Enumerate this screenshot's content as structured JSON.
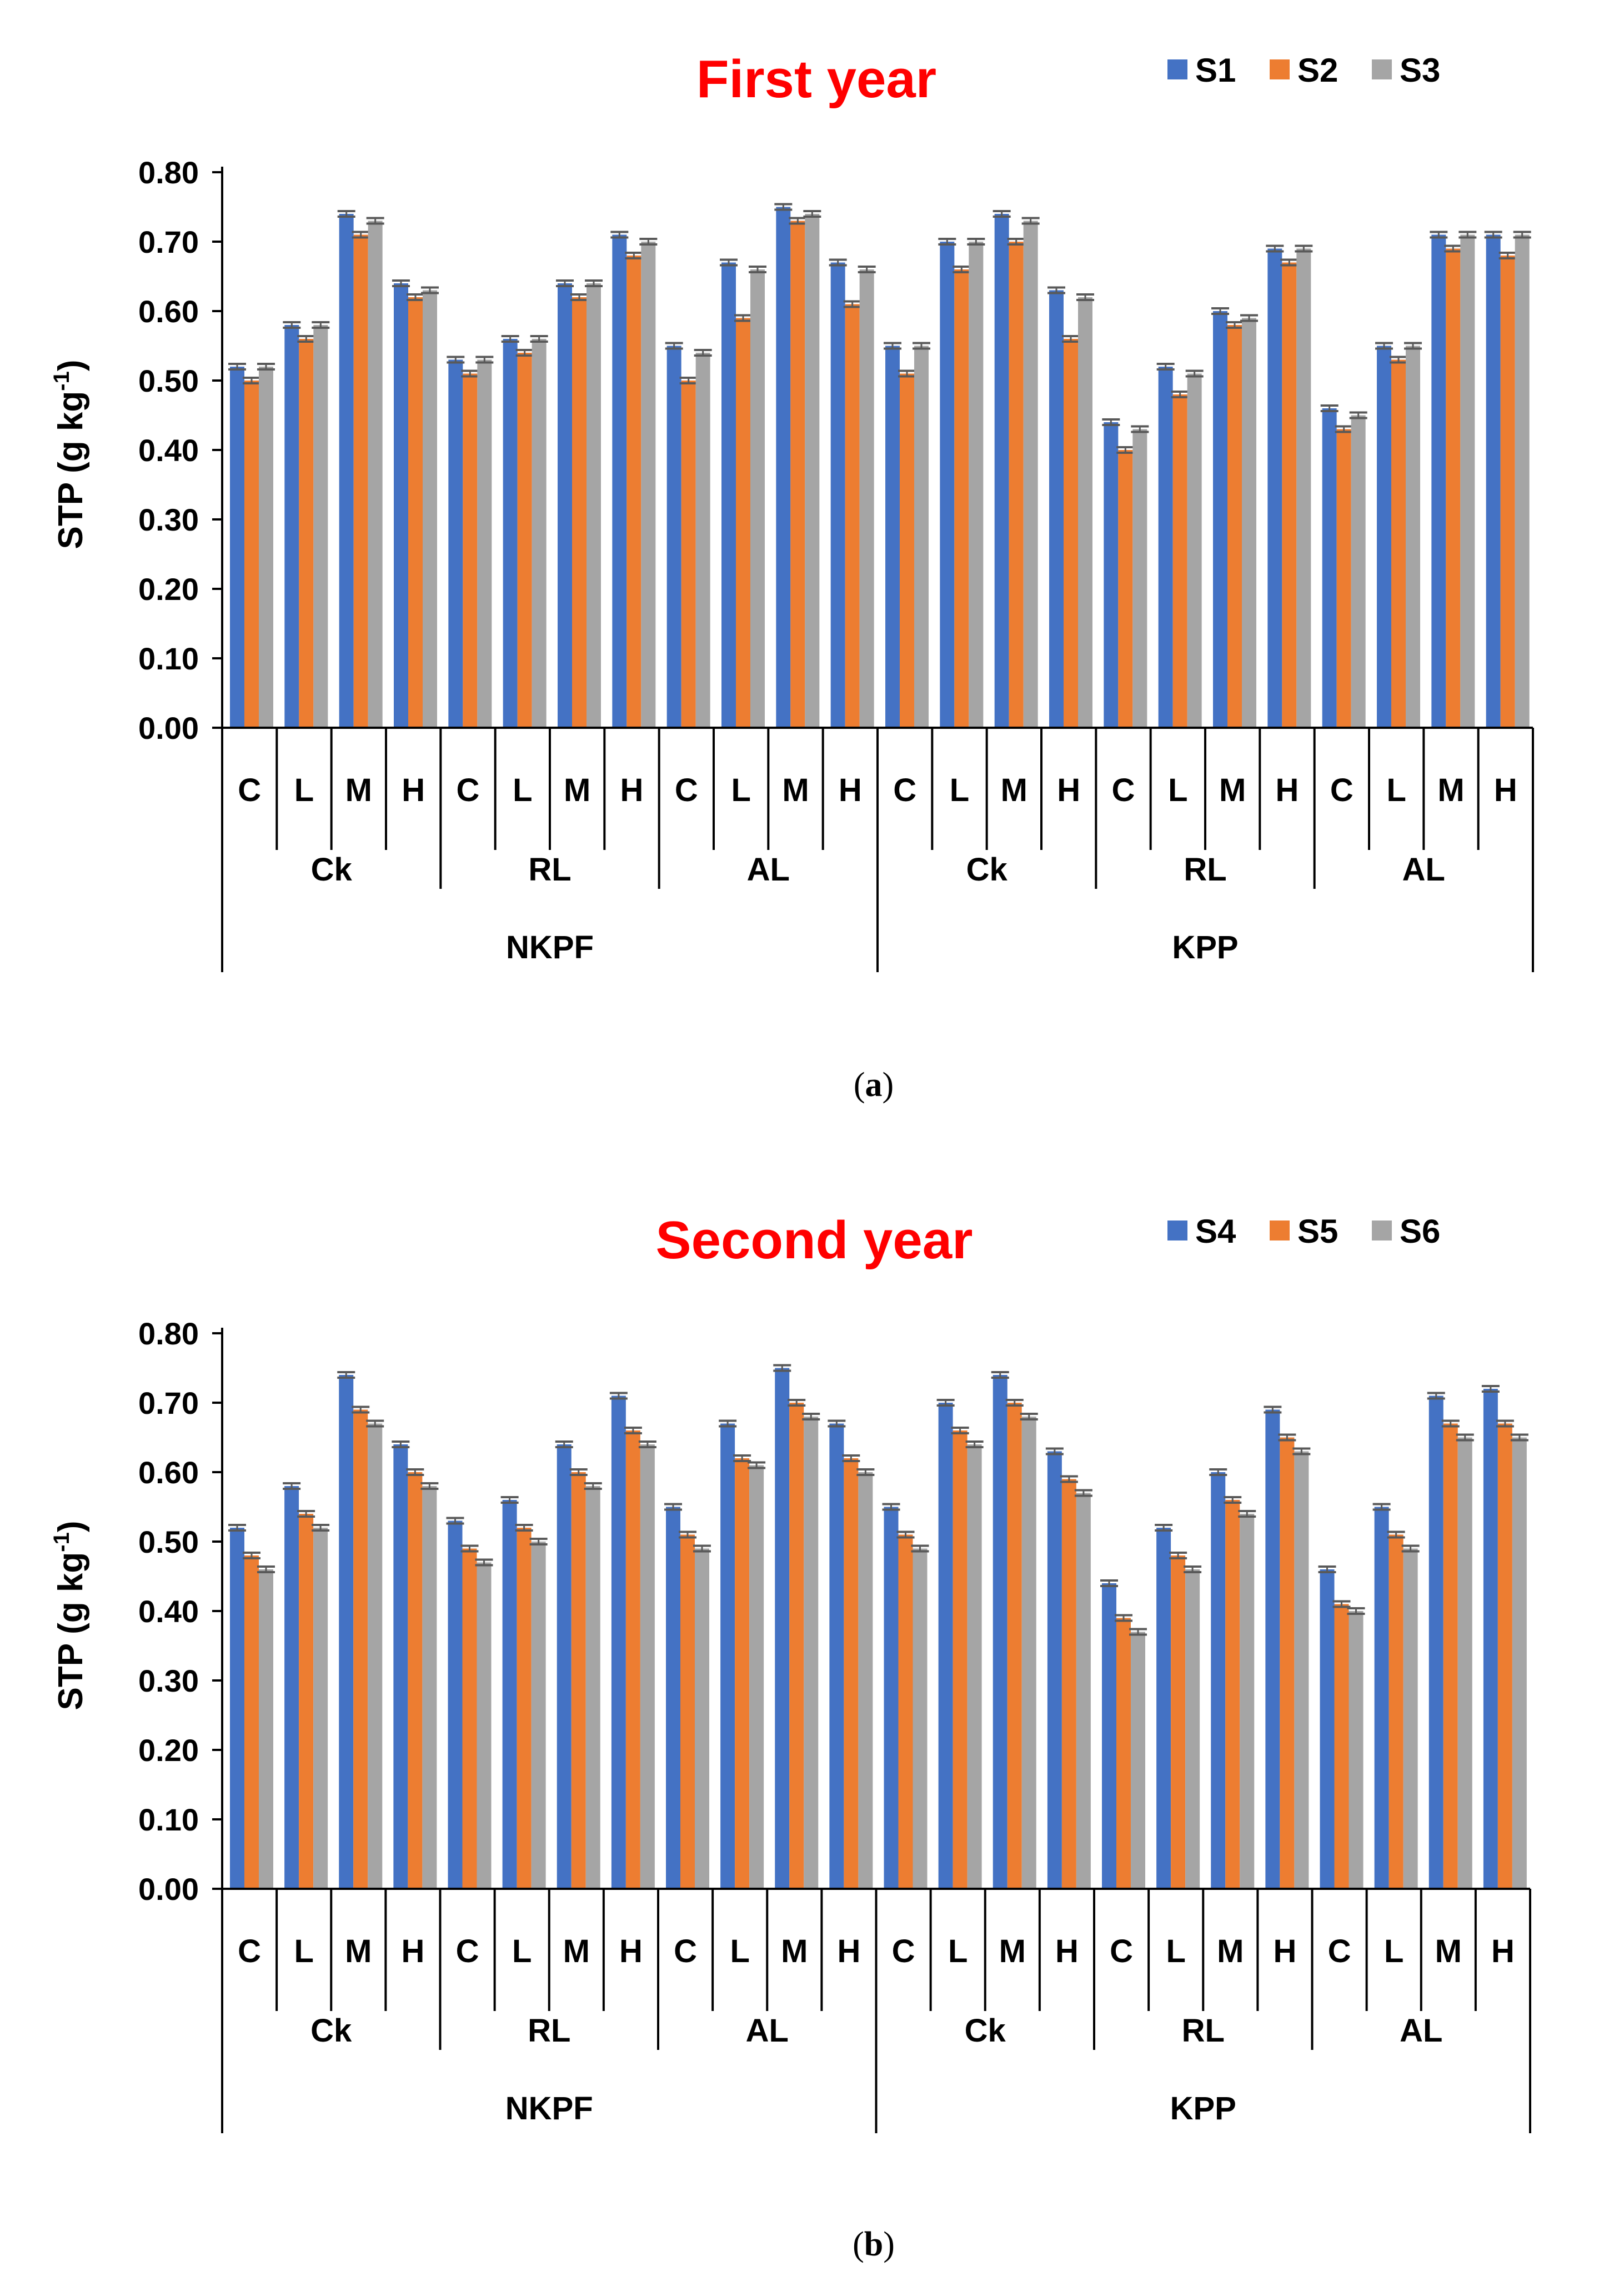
{
  "colors": {
    "series1": "#4472C4",
    "series2": "#ED7D31",
    "series3": "#A5A5A5",
    "title": "#FF0000",
    "errorbar": "#595959"
  },
  "chart_data": [
    {
      "type": "bar",
      "title": "First year",
      "caption": "(a)",
      "ylabel": "STP (g kg",
      "ylabel_sup": "-1",
      "ylabel_close": ")",
      "ylim": [
        0,
        0.8
      ],
      "yticks": [
        "0.00",
        "0.10",
        "0.20",
        "0.30",
        "0.40",
        "0.50",
        "0.60",
        "0.70",
        "0.80"
      ],
      "grid": false,
      "legend_position": "top-right",
      "categories_level1": [
        "C",
        "L",
        "M",
        "H",
        "C",
        "L",
        "M",
        "H",
        "C",
        "L",
        "M",
        "H",
        "C",
        "L",
        "M",
        "H",
        "C",
        "L",
        "M",
        "H",
        "C",
        "L",
        "M",
        "H"
      ],
      "categories_level2": [
        "Ck",
        "RL",
        "AL",
        "Ck",
        "RL",
        "AL"
      ],
      "categories_level3": [
        "NKPF",
        "KPP"
      ],
      "series": [
        {
          "name": "S1",
          "values": [
            0.52,
            0.58,
            0.74,
            0.64,
            0.53,
            0.56,
            0.64,
            0.71,
            0.55,
            0.67,
            0.75,
            0.67,
            0.55,
            0.7,
            0.74,
            0.63,
            0.44,
            0.52,
            0.6,
            0.69,
            0.46,
            0.55,
            0.71,
            0.71
          ]
        },
        {
          "name": "S2",
          "values": [
            0.5,
            0.56,
            0.71,
            0.62,
            0.51,
            0.54,
            0.62,
            0.68,
            0.5,
            0.59,
            0.73,
            0.61,
            0.51,
            0.66,
            0.7,
            0.56,
            0.4,
            0.48,
            0.58,
            0.67,
            0.43,
            0.53,
            0.69,
            0.68
          ]
        },
        {
          "name": "S3",
          "values": [
            0.52,
            0.58,
            0.73,
            0.63,
            0.53,
            0.56,
            0.64,
            0.7,
            0.54,
            0.66,
            0.74,
            0.66,
            0.55,
            0.7,
            0.73,
            0.62,
            0.43,
            0.51,
            0.59,
            0.69,
            0.45,
            0.55,
            0.71,
            0.71
          ]
        }
      ]
    },
    {
      "type": "bar",
      "title": "Second year",
      "caption": "(b)",
      "ylabel": "STP (g kg",
      "ylabel_sup": "-1",
      "ylabel_close": ")",
      "ylim": [
        0,
        0.8
      ],
      "yticks": [
        "0.00",
        "0.10",
        "0.20",
        "0.30",
        "0.40",
        "0.50",
        "0.60",
        "0.70",
        "0.80"
      ],
      "grid": false,
      "legend_position": "top-right",
      "categories_level1": [
        "C",
        "L",
        "M",
        "H",
        "C",
        "L",
        "M",
        "H",
        "C",
        "L",
        "M",
        "H",
        "C",
        "L",
        "M",
        "H",
        "C",
        "L",
        "M",
        "H",
        "C",
        "L",
        "M",
        "H"
      ],
      "categories_level2": [
        "Ck",
        "RL",
        "AL",
        "Ck",
        "RL",
        "AL"
      ],
      "categories_level3": [
        "NKPF",
        "KPP"
      ],
      "series": [
        {
          "name": "S4",
          "values": [
            0.52,
            0.58,
            0.74,
            0.64,
            0.53,
            0.56,
            0.64,
            0.71,
            0.55,
            0.67,
            0.75,
            0.67,
            0.55,
            0.7,
            0.74,
            0.63,
            0.44,
            0.52,
            0.6,
            0.69,
            0.46,
            0.55,
            0.71,
            0.72
          ]
        },
        {
          "name": "S5",
          "values": [
            0.48,
            0.54,
            0.69,
            0.6,
            0.49,
            0.52,
            0.6,
            0.66,
            0.51,
            0.62,
            0.7,
            0.62,
            0.51,
            0.66,
            0.7,
            0.59,
            0.39,
            0.48,
            0.56,
            0.65,
            0.41,
            0.51,
            0.67,
            0.67
          ]
        },
        {
          "name": "S6",
          "values": [
            0.46,
            0.52,
            0.67,
            0.58,
            0.47,
            0.5,
            0.58,
            0.64,
            0.49,
            0.61,
            0.68,
            0.6,
            0.49,
            0.64,
            0.68,
            0.57,
            0.37,
            0.46,
            0.54,
            0.63,
            0.4,
            0.49,
            0.65,
            0.65
          ]
        }
      ]
    }
  ]
}
